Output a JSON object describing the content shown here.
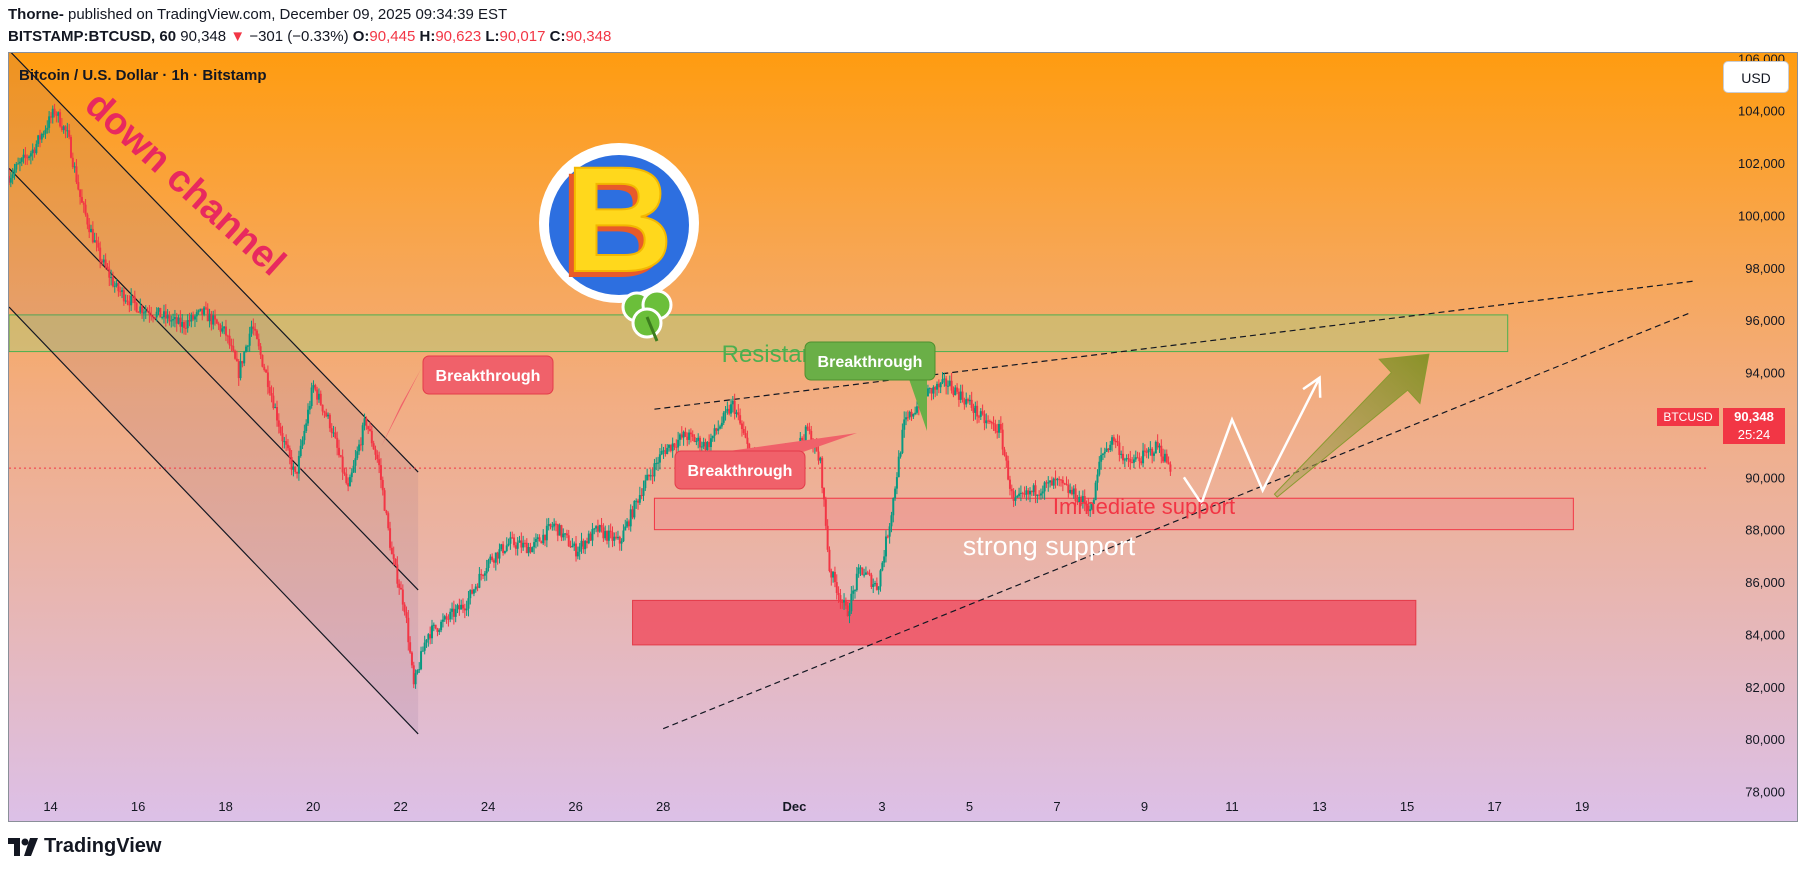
{
  "header": {
    "author": "Thorne-",
    "published": "published on TradingView.com, December 09, 2025 09:34:39 EST",
    "symbol": "BITSTAMP:BTCUSD, 60",
    "last": "90,348",
    "change": "−301 (−0.33%)",
    "open_label": "O:",
    "open": "90,445",
    "high_label": "H:",
    "high": "90,623",
    "low_label": "L:",
    "low": "90,017",
    "close_label": "C:",
    "close": "90,348"
  },
  "chart_title": "Bitcoin / U.S. Dollar · 1h · Bitstamp",
  "currency_button": "USD",
  "price_tag": {
    "label": "BTCUSD",
    "price": "90,348",
    "countdown": "25:24"
  },
  "annotations": {
    "down_channel": "down channel",
    "resistance": "Resistance",
    "immediate_support": "Immediate support",
    "strong_support": "strong support",
    "breakthrough_1": "Breakthrough",
    "breakthrough_2": "Breakthrough",
    "breakthrough_3": "Breakthrough",
    "logo_letter": "B"
  },
  "footer": {
    "brand": "TradingView"
  },
  "chart_data": {
    "type": "candlestick",
    "title": "Bitcoin / U.S. Dollar · 1h · Bitstamp",
    "y_ticks": [
      78000,
      80000,
      82000,
      84000,
      86000,
      88000,
      90000,
      92000,
      94000,
      96000,
      98000,
      100000,
      102000,
      104000,
      106000
    ],
    "y_tick_labels": [
      "78,000",
      "80,000",
      "82,000",
      "84,000",
      "86,000",
      "88,000",
      "90,000",
      "92,000",
      "94,000",
      "96,000",
      "98,000",
      "100,000",
      "102,000",
      "104,000",
      "106,000"
    ],
    "ylim": [
      76800,
      106200
    ],
    "x_tick_labels": [
      "14",
      "16",
      "18",
      "20",
      "22",
      "24",
      "26",
      "28",
      "Dec",
      "3",
      "5",
      "7",
      "9",
      "11",
      "13",
      "15",
      "17",
      "19"
    ],
    "x_tick_days": [
      13,
      15,
      17,
      19,
      21,
      23,
      25,
      27,
      30,
      32,
      34,
      36,
      38,
      40,
      42,
      44,
      46,
      48
    ],
    "xlim": [
      12.05,
      50.9
    ],
    "x_unit_note": "days from Nov 1, 2025 (Dec 1 = 30)",
    "current_price": 90348,
    "price_path": [
      [
        12.05,
        101500
      ],
      [
        12.6,
        102500
      ],
      [
        13.1,
        104000
      ],
      [
        13.4,
        103000
      ],
      [
        13.7,
        100500
      ],
      [
        14.1,
        98500
      ],
      [
        14.5,
        97200
      ],
      [
        15.0,
        96500
      ],
      [
        15.5,
        96200
      ],
      [
        16.0,
        95800
      ],
      [
        16.5,
        96300
      ],
      [
        17.0,
        95500
      ],
      [
        17.3,
        94000
      ],
      [
        17.6,
        95800
      ],
      [
        18.0,
        93500
      ],
      [
        18.3,
        91500
      ],
      [
        18.6,
        90000
      ],
      [
        19.0,
        93500
      ],
      [
        19.4,
        92000
      ],
      [
        19.8,
        89500
      ],
      [
        20.2,
        92200
      ],
      [
        20.5,
        90500
      ],
      [
        20.8,
        87000
      ],
      [
        21.1,
        85000
      ],
      [
        21.3,
        82000
      ],
      [
        21.6,
        84000
      ],
      [
        22.0,
        84500
      ],
      [
        22.5,
        85200
      ],
      [
        23.0,
        86800
      ],
      [
        23.5,
        87500
      ],
      [
        24.0,
        87300
      ],
      [
        24.5,
        88200
      ],
      [
        25.0,
        87200
      ],
      [
        25.5,
        88000
      ],
      [
        26.0,
        87500
      ],
      [
        26.5,
        89500
      ],
      [
        27.0,
        91000
      ],
      [
        27.5,
        91600
      ],
      [
        28.0,
        91200
      ],
      [
        28.6,
        92800
      ],
      [
        29.0,
        90800
      ],
      [
        29.5,
        90500
      ],
      [
        30.0,
        91000
      ],
      [
        30.3,
        91800
      ],
      [
        30.6,
        90500
      ],
      [
        30.8,
        86500
      ],
      [
        31.2,
        84800
      ],
      [
        31.5,
        86500
      ],
      [
        31.9,
        85800
      ],
      [
        32.2,
        88500
      ],
      [
        32.5,
        92000
      ],
      [
        33.0,
        93200
      ],
      [
        33.5,
        93600
      ],
      [
        34.0,
        92800
      ],
      [
        34.3,
        92200
      ],
      [
        34.7,
        91800
      ],
      [
        35.0,
        89000
      ],
      [
        35.5,
        89500
      ],
      [
        36.0,
        89800
      ],
      [
        36.5,
        89200
      ],
      [
        36.8,
        88800
      ],
      [
        37.0,
        90800
      ],
      [
        37.3,
        91500
      ],
      [
        37.6,
        90500
      ],
      [
        38.0,
        90800
      ],
      [
        38.3,
        91200
      ],
      [
        38.6,
        90348
      ]
    ],
    "zones": [
      {
        "name": "Resistance",
        "from_day": 12.05,
        "to_day": 46.3,
        "low": 94800,
        "high": 96200
      },
      {
        "name": "Immediate support",
        "from_day": 26.8,
        "to_day": 47.8,
        "low": 88000,
        "high": 89200
      },
      {
        "name": "strong support",
        "from_day": 26.3,
        "to_day": 44.2,
        "low": 83600,
        "high": 85300
      }
    ],
    "trendlines": [
      {
        "name": "down channel upper",
        "from": [
          12.05,
          106300
        ],
        "to": [
          21.4,
          90200
        ]
      },
      {
        "name": "down channel middle",
        "from": [
          12.05,
          101800
        ],
        "to": [
          21.4,
          85700
        ]
      },
      {
        "name": "down channel lower",
        "from": [
          12.05,
          96500
        ],
        "to": [
          21.4,
          80200
        ]
      },
      {
        "name": "resistance trendline",
        "from": [
          26.8,
          92600
        ],
        "to": [
          50.6,
          97500
        ]
      },
      {
        "name": "support trendline",
        "from": [
          27.0,
          80400
        ],
        "to": [
          50.5,
          96300
        ]
      }
    ],
    "projection_path": [
      [
        38.9,
        90000
      ],
      [
        39.3,
        89000
      ],
      [
        40.0,
        92200
      ],
      [
        40.7,
        89500
      ],
      [
        42.0,
        93800
      ]
    ],
    "projection_arrow": {
      "from": [
        41.0,
        89300
      ],
      "to": [
        44.5,
        94700
      ]
    },
    "breakthrough_points": [
      [
        20.8,
        89000
      ],
      [
        31.0,
        89300
      ],
      [
        32.0,
        89600
      ]
    ]
  }
}
